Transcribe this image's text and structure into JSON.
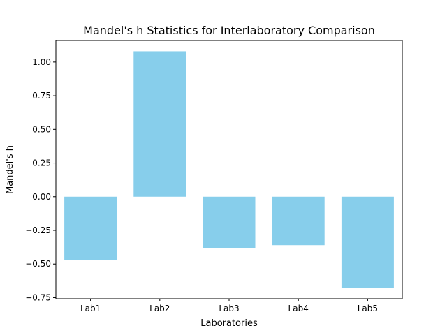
{
  "chart_data": {
    "type": "bar",
    "title": "Mandel's h Statistics for Interlaboratory Comparison",
    "xlabel": "Laboratories",
    "ylabel": "Mandel's h",
    "categories": [
      "Lab1",
      "Lab2",
      "Lab3",
      "Lab4",
      "Lab5"
    ],
    "values": [
      -0.47,
      1.08,
      -0.38,
      -0.36,
      -0.68
    ],
    "ylim": [
      -0.758,
      1.16
    ],
    "yticks": [
      -0.75,
      -0.5,
      -0.25,
      0.0,
      0.25,
      0.5,
      0.75,
      1.0
    ],
    "ytick_labels": [
      "−0.75",
      "−0.50",
      "−0.25",
      "0.00",
      "0.25",
      "0.50",
      "0.75",
      "1.00"
    ],
    "bar_color": "#87CEEB",
    "grid": false,
    "legend": "none"
  }
}
